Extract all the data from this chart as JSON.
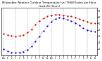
{
  "title": "Milwaukee Weather Outdoor Temperature (vs) THSW Index per Hour (Last 24 Hours)",
  "title_fontsize": 2.8,
  "background_color": "#ffffff",
  "plot_bg_color": "#ffffff",
  "grid_color": "#999999",
  "hours": [
    0,
    1,
    2,
    3,
    4,
    5,
    6,
    7,
    8,
    9,
    10,
    11,
    12,
    13,
    14,
    15,
    16,
    17,
    18,
    19,
    20,
    21,
    22,
    23
  ],
  "temp": [
    34,
    32,
    31,
    30,
    31,
    32,
    36,
    41,
    48,
    54,
    58,
    61,
    63,
    64,
    64,
    63,
    62,
    61,
    59,
    57,
    55,
    53,
    51,
    50
  ],
  "thsw": [
    10,
    7,
    5,
    4,
    5,
    6,
    9,
    14,
    22,
    30,
    38,
    46,
    53,
    57,
    59,
    58,
    56,
    54,
    51,
    47,
    43,
    40,
    38,
    37
  ],
  "temp_color": "#cc0000",
  "thsw_color": "#0000cc",
  "ylabel_right_values": [
    70,
    60,
    50,
    40,
    30,
    20,
    10
  ],
  "ylabel_right_color": "#000000",
  "xlabel_color": "#000000",
  "xtick_labels": [
    "12a",
    "1",
    "2",
    "3",
    "4",
    "5",
    "6",
    "7",
    "8",
    "9",
    "10",
    "11",
    "12p",
    "1",
    "2",
    "3",
    "4",
    "5",
    "6",
    "7",
    "8",
    "9",
    "10",
    "11"
  ],
  "vertical_grid_positions": [
    0,
    3,
    6,
    9,
    12,
    15,
    18,
    21
  ],
  "ylim": [
    0,
    75
  ],
  "xlim": [
    -0.5,
    23.5
  ],
  "marker_size": 1.2,
  "figwidth": 1.45,
  "figheight": 0.87,
  "dpi": 100
}
